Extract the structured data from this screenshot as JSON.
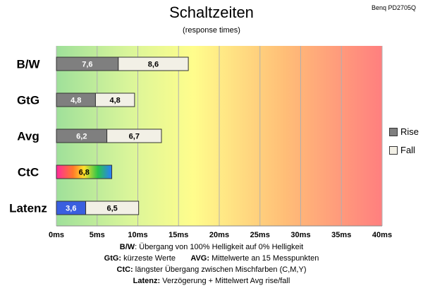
{
  "title": "Schaltzeiten",
  "subtitle": "(response times)",
  "product": "Benq PD2705Q",
  "colors": {
    "rise": "#7f7f7f",
    "fall": "#f2f0e6",
    "latency_rise": "#3a5fe0"
  },
  "chart_data": {
    "type": "bar",
    "orientation": "horizontal",
    "stacked": true,
    "categories": [
      "B/W",
      "GtG",
      "Avg",
      "CtC",
      "Latenz"
    ],
    "series": [
      {
        "name": "Rise",
        "values": [
          7.6,
          4.8,
          6.2,
          null,
          3.6
        ]
      },
      {
        "name": "Fall",
        "values": [
          8.6,
          4.8,
          6.7,
          null,
          6.5
        ]
      },
      {
        "name": "CtC",
        "values": [
          null,
          null,
          null,
          6.8,
          null
        ]
      }
    ],
    "xlim": [
      0,
      40
    ],
    "xticks": [
      "0ms",
      "5ms",
      "10ms",
      "15ms",
      "20ms",
      "25ms",
      "30ms",
      "35ms",
      "40ms"
    ],
    "legend": {
      "position": "right",
      "entries": [
        "Rise",
        "Fall"
      ]
    },
    "background": "gradient green-yellow-red"
  },
  "footer": [
    {
      "label": "B/W",
      "text": ":  Übergang von 100% Helligkeit auf 0% Helligkeit"
    },
    {
      "label": "GtG:",
      "text": " kürzeste  Werte",
      "label2": "AVG:",
      "text2": " Mittelwerte  an 15 Messpunkten"
    },
    {
      "label": "CtC:",
      "text": " längster Übergang  zwischen Mischfarben (C,M,Y)"
    },
    {
      "label": "Latenz:",
      "text": " Verzögerung  + Mittelwert Avg rise/fall"
    }
  ]
}
